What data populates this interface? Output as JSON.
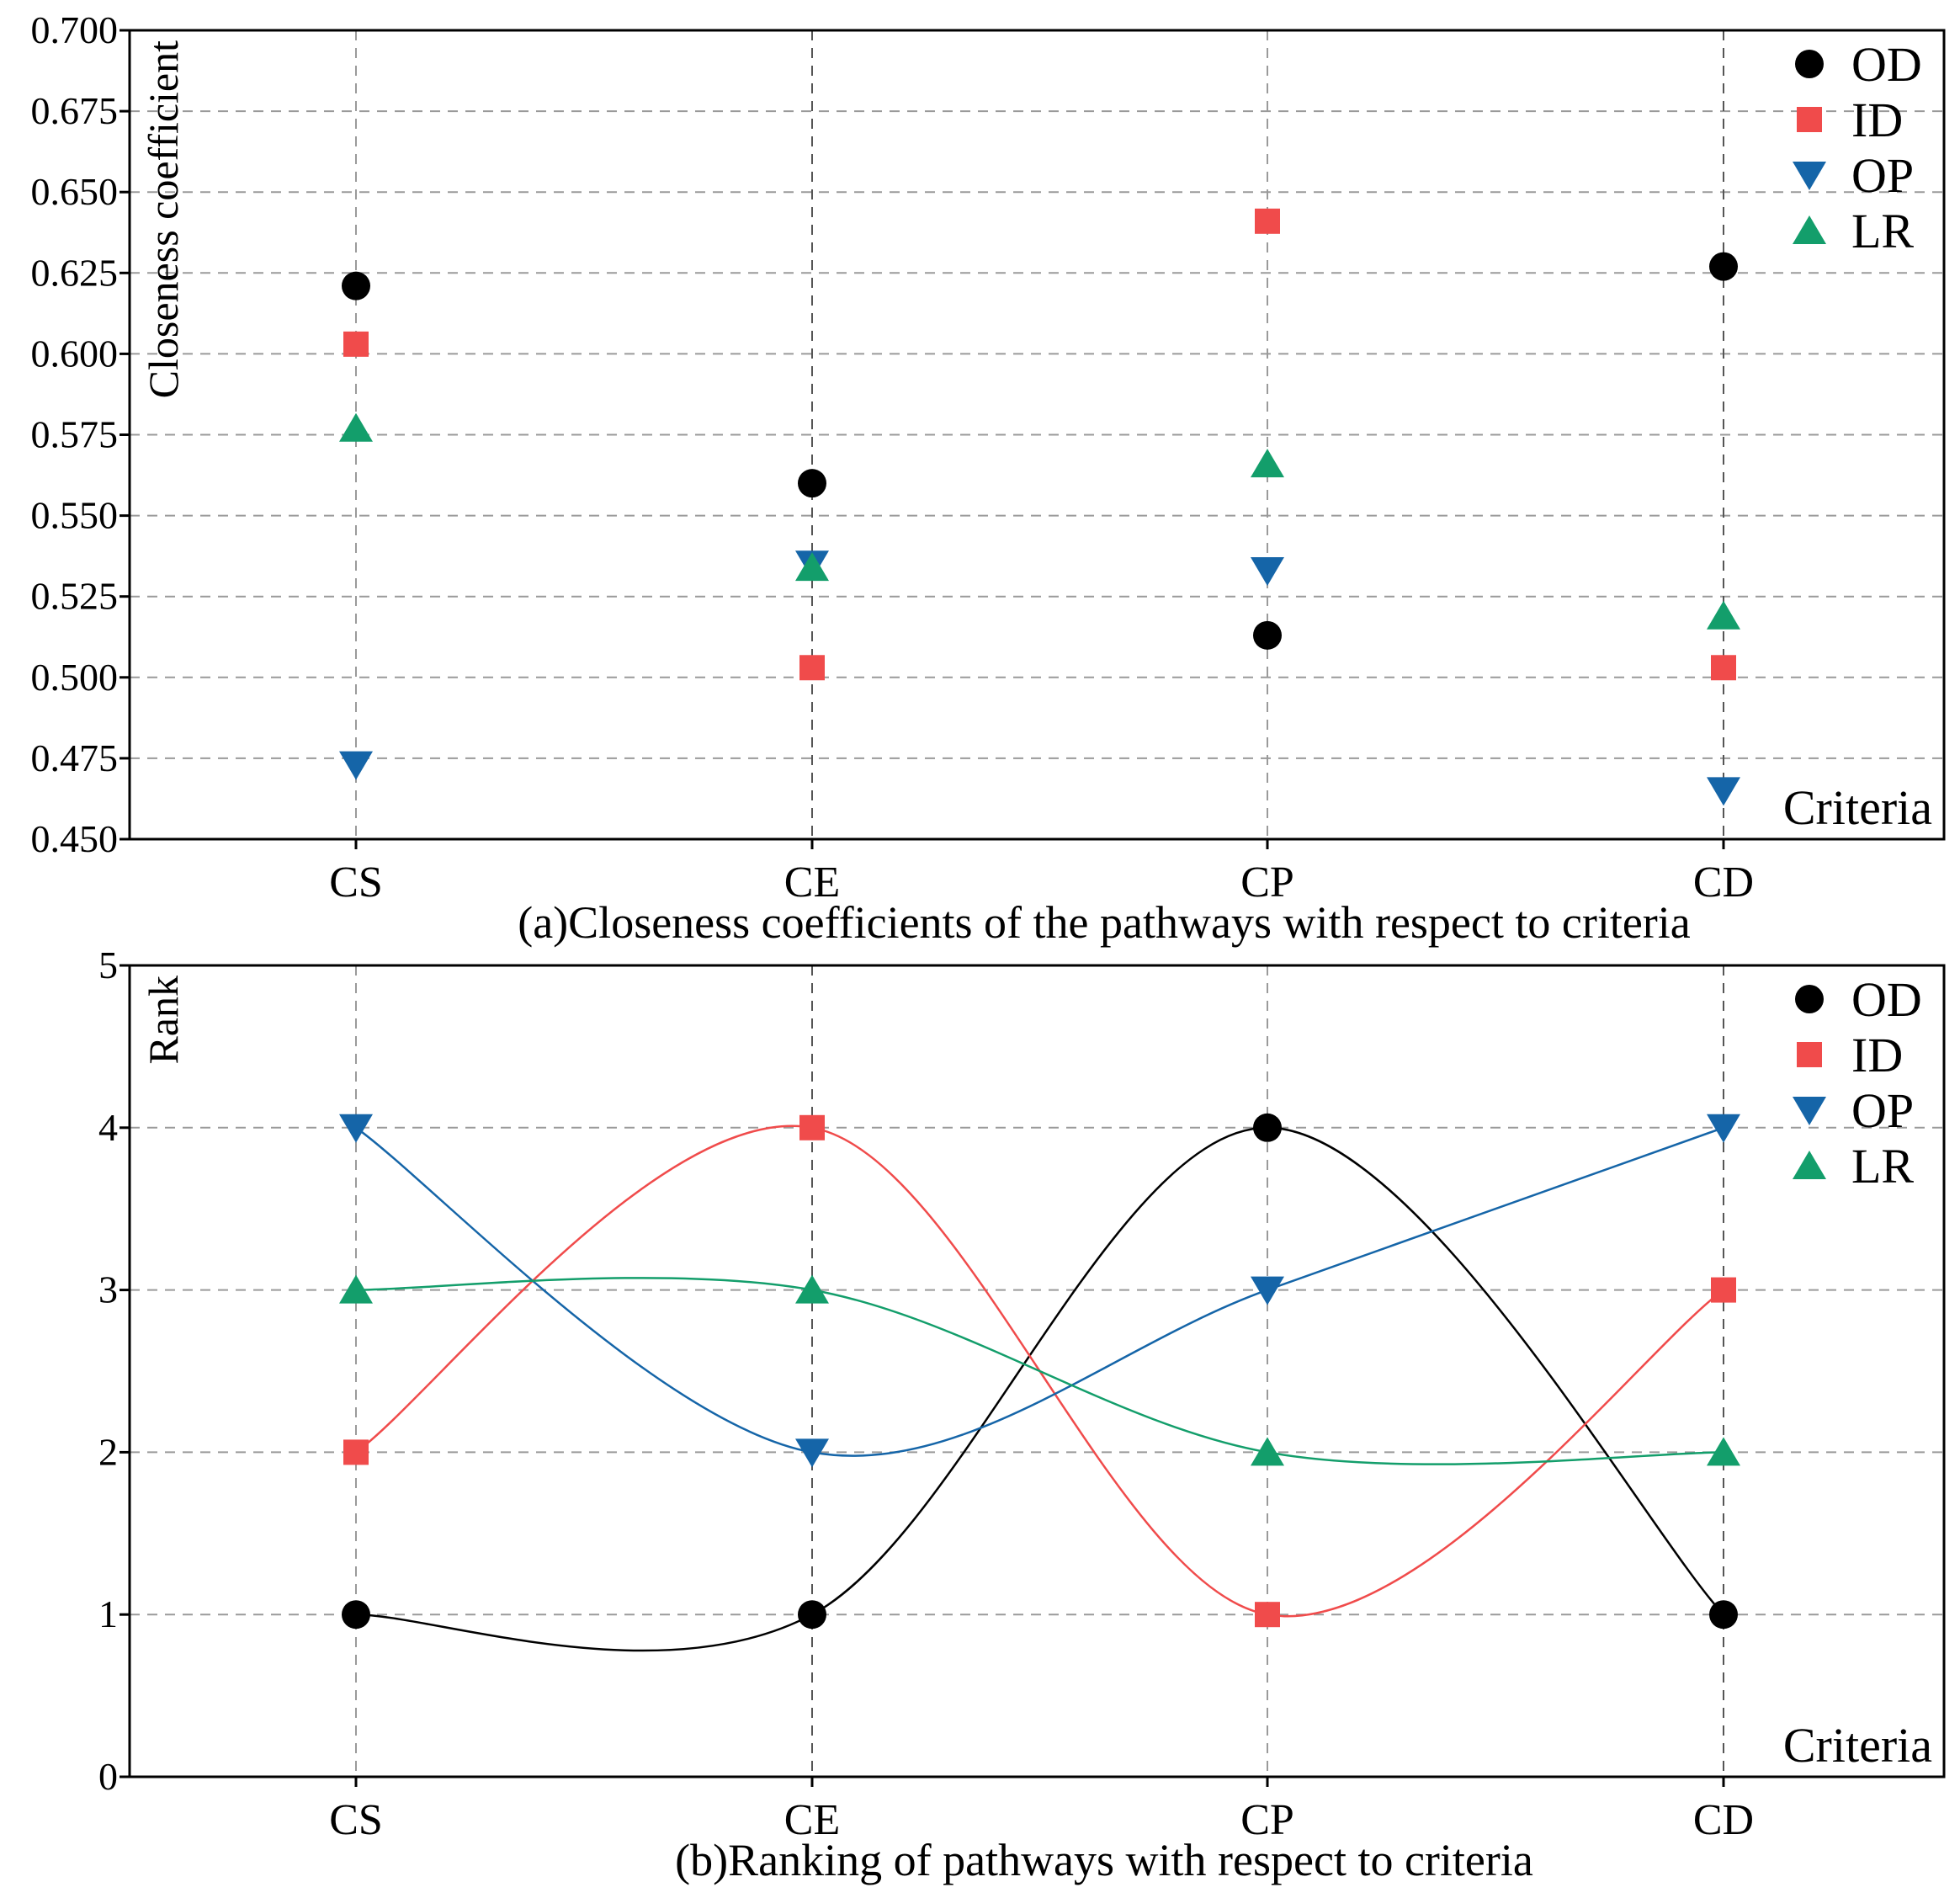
{
  "colors": {
    "OD": "#000000",
    "ID": "#f04b4b",
    "OP": "#1565a8",
    "LR": "#139e6b",
    "grid": "#9a9a9a",
    "axis": "#000000"
  },
  "chart_data": [
    {
      "type": "scatter",
      "title": "(a)Closeness coefficients of the pathways with respect to criteria",
      "ylabel": "Closeness coefficient",
      "xlabel": "Criteria",
      "categories": [
        "CS",
        "CE",
        "CP",
        "CD"
      ],
      "ylim": [
        0.45,
        0.7
      ],
      "yticks": [
        0.45,
        0.475,
        0.5,
        0.525,
        0.55,
        0.575,
        0.6,
        0.625,
        0.65,
        0.675,
        0.7
      ],
      "ytick_labels": [
        "0.450",
        "0.475",
        "0.500",
        "0.525",
        "0.550",
        "0.575",
        "0.600",
        "0.625",
        "0.650",
        "0.675",
        "0.700"
      ],
      "grid": true,
      "legend_position": "top-right",
      "series": [
        {
          "name": "OD",
          "marker": "circle",
          "values": [
            0.621,
            0.56,
            0.513,
            0.627
          ]
        },
        {
          "name": "ID",
          "marker": "square",
          "values": [
            0.603,
            0.503,
            0.641,
            0.503
          ]
        },
        {
          "name": "OP",
          "marker": "triangle-down",
          "values": [
            0.473,
            0.535,
            0.533,
            0.465
          ]
        },
        {
          "name": "LR",
          "marker": "triangle-up",
          "values": [
            0.577,
            0.534,
            0.566,
            0.519
          ]
        }
      ]
    },
    {
      "type": "line",
      "title": "(b)Ranking of pathways with respect to criteria",
      "ylabel": "Rank",
      "xlabel": "Criteria",
      "categories": [
        "CS",
        "CE",
        "CP",
        "CD"
      ],
      "ylim": [
        0,
        5
      ],
      "yticks": [
        0,
        1,
        2,
        3,
        4,
        5
      ],
      "ytick_labels": [
        "0",
        "1",
        "2",
        "3",
        "4",
        "5"
      ],
      "grid": true,
      "smooth": true,
      "legend_position": "top-right",
      "series": [
        {
          "name": "OD",
          "marker": "circle",
          "values": [
            1,
            1,
            4,
            1
          ]
        },
        {
          "name": "ID",
          "marker": "square",
          "values": [
            2,
            4,
            1,
            3
          ]
        },
        {
          "name": "OP",
          "marker": "triangle-down",
          "values": [
            4,
            2,
            3,
            4
          ]
        },
        {
          "name": "LR",
          "marker": "triangle-up",
          "values": [
            3,
            3,
            2,
            2
          ]
        }
      ]
    }
  ]
}
